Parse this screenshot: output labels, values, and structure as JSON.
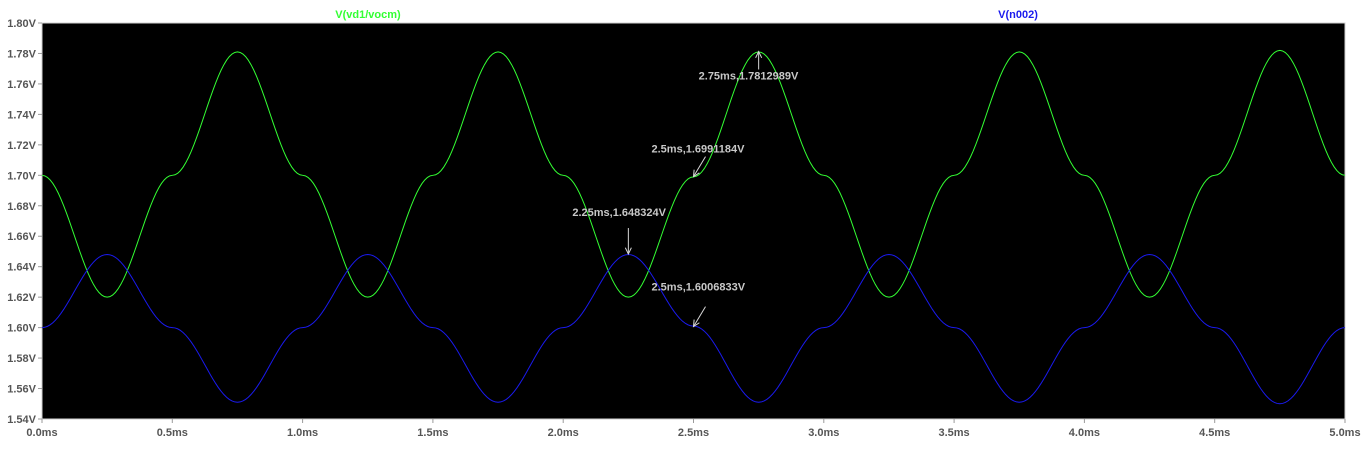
{
  "chart_data": {
    "type": "line",
    "xlim": [
      0,
      5
    ],
    "ylim": [
      1.54,
      1.8
    ],
    "x_ticks": [
      "0.0ms",
      "0.5ms",
      "1.0ms",
      "1.5ms",
      "2.0ms",
      "2.5ms",
      "3.0ms",
      "3.5ms",
      "4.0ms",
      "4.5ms",
      "5.0ms"
    ],
    "y_ticks": [
      "1.54V",
      "1.56V",
      "1.58V",
      "1.60V",
      "1.62V",
      "1.64V",
      "1.66V",
      "1.68V",
      "1.70V",
      "1.72V",
      "1.74V",
      "1.76V",
      "1.78V",
      "1.80V"
    ],
    "grid": false,
    "background": "#000000",
    "series": [
      {
        "name": "V(vd1/vocm)",
        "color": "#33ff33",
        "x_unit": "ms",
        "x": [
          0,
          0.25,
          0.5,
          0.75,
          1.0,
          1.25,
          1.5,
          1.75,
          2.0,
          2.25,
          2.5,
          2.75,
          3.0,
          3.25,
          3.5,
          3.75,
          4.0,
          4.25,
          4.5,
          4.75,
          5.0
        ],
        "y": [
          1.7,
          1.62,
          1.7,
          1.781,
          1.7,
          1.62,
          1.7,
          1.781,
          1.7,
          1.62,
          1.699,
          1.781,
          1.7,
          1.62,
          1.7,
          1.781,
          1.7,
          1.62,
          1.7,
          1.782,
          1.7
        ]
      },
      {
        "name": "V(n002)",
        "color": "#1a1aee",
        "x_unit": "ms",
        "x": [
          0,
          0.25,
          0.5,
          0.75,
          1.0,
          1.25,
          1.5,
          1.75,
          2.0,
          2.25,
          2.5,
          2.75,
          3.0,
          3.25,
          3.5,
          3.75,
          4.0,
          4.25,
          4.5,
          4.75,
          5.0
        ],
        "y": [
          1.6,
          1.648,
          1.6,
          1.551,
          1.6,
          1.648,
          1.6,
          1.551,
          1.6,
          1.648,
          1.601,
          1.551,
          1.6,
          1.648,
          1.6,
          1.551,
          1.6,
          1.648,
          1.6,
          1.55,
          1.6
        ]
      }
    ],
    "annotations": [
      {
        "text": "2.75ms,1.7812989V",
        "x": 2.75,
        "y": 1.7812989
      },
      {
        "text": "2.5ms,1.6991184V",
        "x": 2.5,
        "y": 1.6991184
      },
      {
        "text": "2.25ms,1.648324V",
        "x": 2.25,
        "y": 1.648324
      },
      {
        "text": "2.5ms,1.6006833V",
        "x": 2.5,
        "y": 1.6006833
      }
    ]
  }
}
